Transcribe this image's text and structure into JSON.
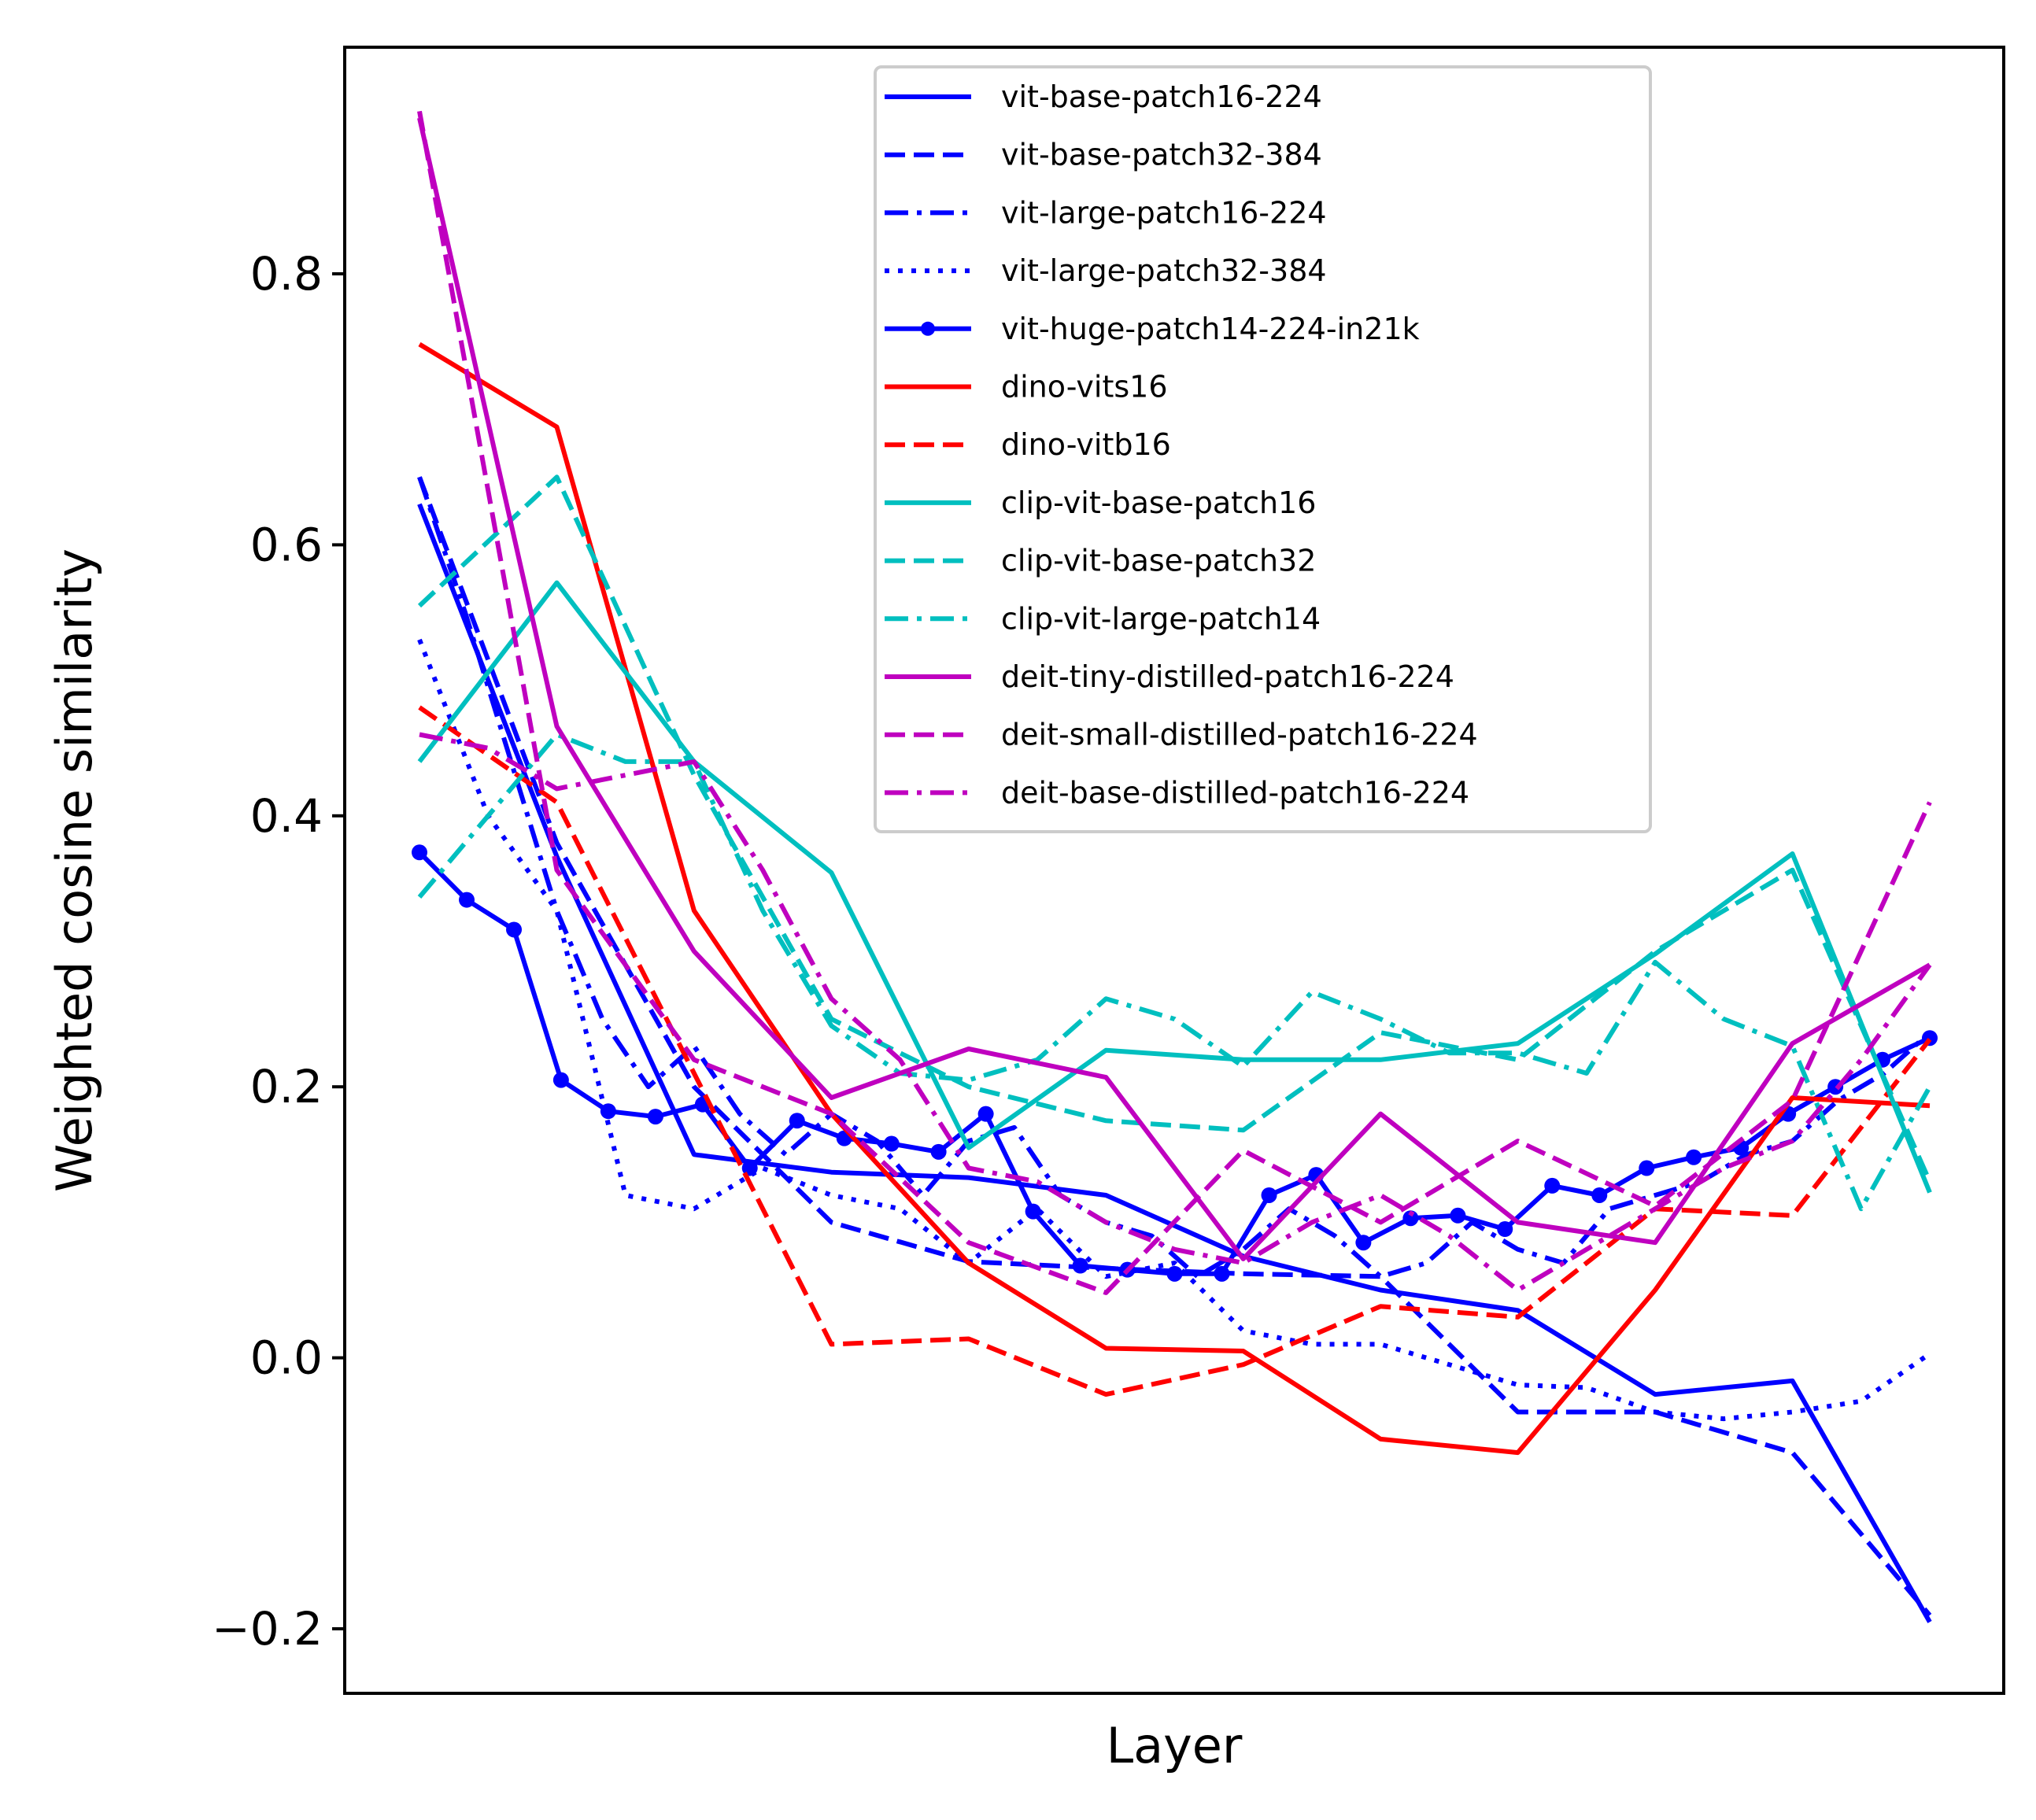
{
  "chart_data": {
    "type": "line",
    "title": "",
    "xlabel": "Layer",
    "ylabel": "Weighted cosine similarity",
    "xticks_visible": false,
    "ylim": [
      -0.25,
      0.97
    ],
    "yticks": [
      -0.2,
      0.0,
      0.2,
      0.4,
      0.6,
      0.8
    ],
    "ytick_labels": [
      "−0.2",
      "0.0",
      "0.2",
      "0.4",
      "0.6",
      "0.8"
    ],
    "legend_position": "top-center",
    "series": [
      {
        "name": "vit-base-patch16-224",
        "color": "#0000ff",
        "style": "solid",
        "marker": false,
        "x": [
          0,
          1,
          2,
          3,
          4,
          5,
          6,
          7,
          8,
          9,
          10,
          11
        ],
        "y": [
          0.63,
          0.37,
          0.15,
          0.137,
          0.133,
          0.12,
          0.075,
          0.05,
          0.035,
          -0.027,
          -0.017,
          -0.195
        ]
      },
      {
        "name": "vit-base-patch32-384",
        "color": "#0000ff",
        "style": "dashed",
        "marker": false,
        "x": [
          0,
          1,
          2,
          3,
          4,
          5,
          6,
          7,
          8,
          9,
          10,
          11
        ],
        "y": [
          0.65,
          0.38,
          0.2,
          0.1,
          0.071,
          0.066,
          0.062,
          0.06,
          -0.04,
          -0.04,
          -0.07,
          -0.19
        ]
      },
      {
        "name": "vit-large-patch16-224",
        "color": "#0000ff",
        "style": "dashdot",
        "marker": false,
        "x": [
          0,
          0.333,
          0.667,
          1,
          1.333,
          1.667,
          2,
          2.333,
          2.667,
          3,
          3.333,
          3.667,
          4,
          4.333,
          4.667,
          5,
          5.333,
          5.667,
          6,
          6.333,
          6.667,
          7,
          7.333,
          7.667,
          8,
          8.333,
          8.667,
          9,
          9.333,
          9.667,
          10,
          10.333,
          10.667,
          11
        ],
        "y": [
          0.65,
          0.55,
          0.44,
          0.33,
          0.25,
          0.2,
          0.23,
          0.18,
          0.15,
          0.18,
          0.16,
          0.12,
          0.16,
          0.17,
          0.12,
          0.1,
          0.09,
          0.06,
          0.08,
          0.11,
          0.09,
          0.06,
          0.07,
          0.1,
          0.08,
          0.07,
          0.11,
          0.12,
          0.13,
          0.15,
          0.16,
          0.19,
          0.21,
          0.24
        ]
      },
      {
        "name": "vit-large-patch32-384",
        "color": "#0000ff",
        "style": "dotted",
        "marker": false,
        "x": [
          0,
          0.5,
          1,
          1.5,
          2,
          2.5,
          3,
          3.5,
          4,
          4.5,
          5,
          5.5,
          6,
          6.5,
          7,
          7.5,
          8,
          8.5,
          9,
          9.5,
          10,
          10.5,
          11
        ],
        "y": [
          0.53,
          0.4,
          0.33,
          0.12,
          0.11,
          0.14,
          0.12,
          0.11,
          0.07,
          0.11,
          0.06,
          0.07,
          0.02,
          0.01,
          0.01,
          -0.005,
          -0.02,
          -0.022,
          -0.04,
          -0.045,
          -0.04,
          -0.032,
          0.003
        ]
      },
      {
        "name": "vit-huge-patch14-224-in21k",
        "color": "#0000ff",
        "style": "solid",
        "marker": true,
        "x": [
          0,
          0.344,
          0.688,
          1.031,
          1.375,
          1.719,
          2.063,
          2.406,
          2.75,
          3.094,
          3.438,
          3.781,
          4.125,
          4.469,
          4.813,
          5.156,
          5.5,
          5.844,
          6.188,
          6.531,
          6.875,
          7.219,
          7.563,
          7.906,
          8.25,
          8.594,
          8.938,
          9.281,
          9.625,
          9.969,
          10.313,
          10.656,
          11
        ],
        "y": [
          0.373,
          0.338,
          0.316,
          0.205,
          0.182,
          0.178,
          0.187,
          0.14,
          0.175,
          0.162,
          0.158,
          0.152,
          0.18,
          0.108,
          0.068,
          0.065,
          0.062,
          0.062,
          0.12,
          0.135,
          0.085,
          0.103,
          0.105,
          0.095,
          0.127,
          0.12,
          0.14,
          0.148,
          0.155,
          0.18,
          0.2,
          0.22,
          0.236
        ]
      },
      {
        "name": "dino-vits16",
        "color": "#ff0000",
        "style": "solid",
        "marker": false,
        "x": [
          0,
          1,
          2,
          3,
          4,
          5,
          6,
          7,
          8,
          9,
          10,
          11
        ],
        "y": [
          0.748,
          0.687,
          0.33,
          0.18,
          0.07,
          0.007,
          0.005,
          -0.06,
          -0.07,
          0.05,
          0.192,
          0.186
        ]
      },
      {
        "name": "dino-vitb16",
        "color": "#ff0000",
        "style": "dashed",
        "marker": false,
        "x": [
          0,
          1,
          2,
          3,
          4,
          5,
          6,
          7,
          8,
          9,
          10,
          11
        ],
        "y": [
          0.48,
          0.41,
          0.21,
          0.01,
          0.014,
          -0.027,
          -0.005,
          0.038,
          0.03,
          0.11,
          0.105,
          0.235
        ]
      },
      {
        "name": "clip-vit-base-patch16",
        "color": "#00bfbf",
        "style": "solid",
        "marker": false,
        "x": [
          0,
          1,
          2,
          3,
          4,
          5,
          6,
          7,
          8,
          9,
          10,
          11
        ],
        "y": [
          0.44,
          0.572,
          0.44,
          0.358,
          0.155,
          0.227,
          0.22,
          0.22,
          0.232,
          0.298,
          0.372,
          0.122
        ]
      },
      {
        "name": "clip-vit-base-patch32",
        "color": "#00bfbf",
        "style": "dashed",
        "marker": false,
        "x": [
          0,
          1,
          2,
          3,
          4,
          5,
          6,
          7,
          8,
          9,
          10,
          11
        ],
        "y": [
          0.555,
          0.65,
          0.43,
          0.25,
          0.2,
          0.175,
          0.168,
          0.24,
          0.22,
          0.3,
          0.36,
          0.13
        ]
      },
      {
        "name": "clip-vit-large-patch14",
        "color": "#00bfbf",
        "style": "dashdot",
        "marker": false,
        "x": [
          0,
          0.5,
          1,
          1.5,
          2,
          2.5,
          3,
          3.5,
          4,
          4.5,
          5,
          5.5,
          6,
          6.5,
          7,
          7.5,
          8,
          8.5,
          9,
          9.5,
          10,
          10.5,
          11
        ],
        "y": [
          0.34,
          0.4,
          0.46,
          0.44,
          0.44,
          0.33,
          0.245,
          0.21,
          0.205,
          0.22,
          0.265,
          0.25,
          0.215,
          0.27,
          0.25,
          0.225,
          0.225,
          0.21,
          0.292,
          0.25,
          0.23,
          0.11,
          0.2
        ]
      },
      {
        "name": "deit-tiny-distilled-patch16-224",
        "color": "#bf00bf",
        "style": "solid",
        "marker": false,
        "x": [
          0,
          1,
          2,
          3,
          4,
          5,
          6,
          7,
          8,
          9,
          10,
          11
        ],
        "y": [
          0.915,
          0.466,
          0.3,
          0.192,
          0.228,
          0.207,
          0.073,
          0.18,
          0.1,
          0.085,
          0.232,
          0.29
        ]
      },
      {
        "name": "deit-small-distilled-patch16-224",
        "color": "#bf00bf",
        "style": "dashed",
        "marker": false,
        "x": [
          0,
          1,
          2,
          3,
          4,
          5,
          6,
          7,
          8,
          9,
          10,
          11
        ],
        "y": [
          0.92,
          0.36,
          0.22,
          0.18,
          0.085,
          0.048,
          0.153,
          0.1,
          0.16,
          0.112,
          0.19,
          0.41
        ]
      },
      {
        "name": "deit-base-distilled-patch16-224",
        "color": "#bf00bf",
        "style": "dashdot",
        "marker": false,
        "x": [
          0,
          0.5,
          1,
          1.5,
          2,
          2.5,
          3,
          3.5,
          4,
          4.5,
          5,
          5.5,
          6,
          6.5,
          7,
          7.5,
          8,
          8.5,
          9,
          9.5,
          10,
          10.5,
          11
        ],
        "y": [
          0.46,
          0.45,
          0.42,
          0.43,
          0.44,
          0.36,
          0.265,
          0.22,
          0.14,
          0.13,
          0.1,
          0.08,
          0.07,
          0.1,
          0.12,
          0.09,
          0.05,
          0.08,
          0.11,
          0.14,
          0.16,
          0.22,
          0.29
        ]
      }
    ]
  }
}
